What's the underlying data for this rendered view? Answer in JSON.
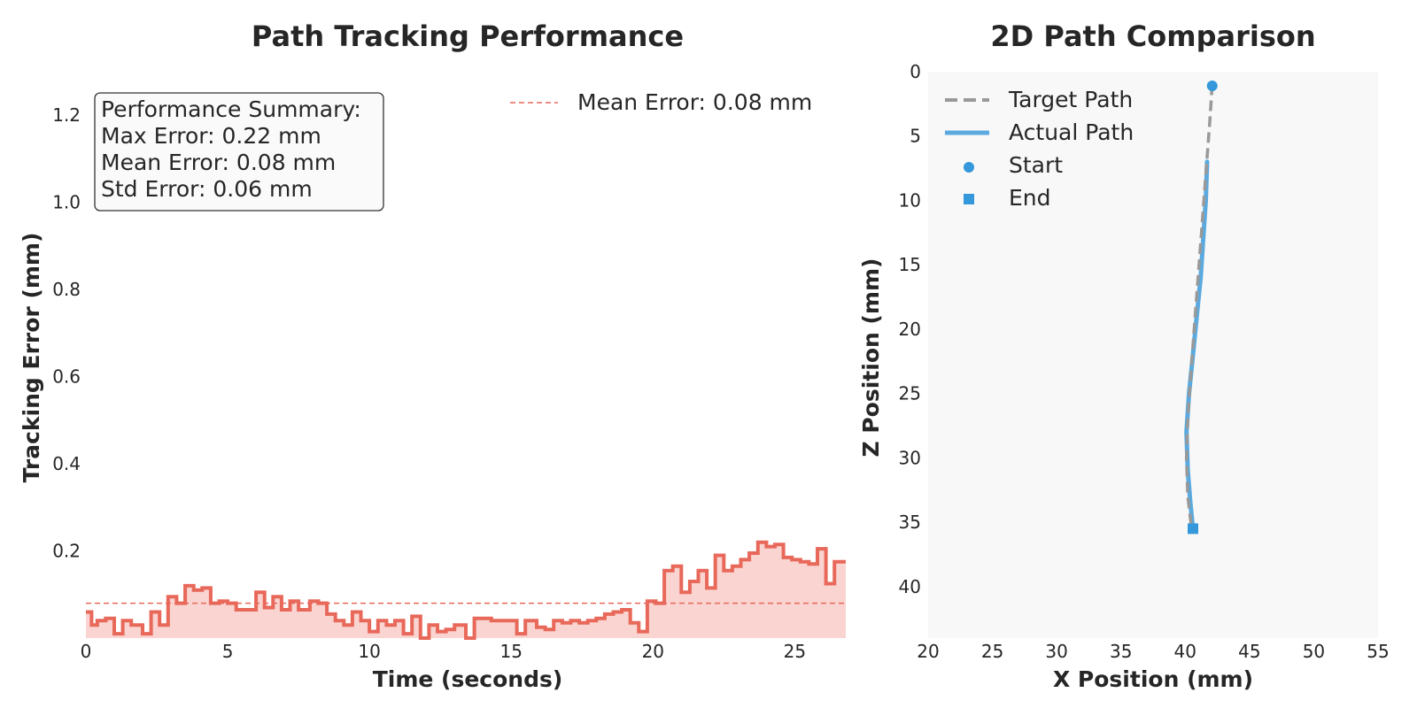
{
  "chart_data": [
    {
      "type": "line",
      "title": "Path Tracking Performance",
      "xlabel": "Time (seconds)",
      "ylabel": "Tracking Error (mm)",
      "xlim": [
        0,
        26.8
      ],
      "ylim": [
        0,
        1.3
      ],
      "xticks": [
        "0",
        "5",
        "10",
        "15",
        "20",
        "25"
      ],
      "yticks": [
        "0.2",
        "0.4",
        "0.6",
        "0.8",
        "1.0",
        "1.2"
      ],
      "grid": false,
      "legend_position": "top-right",
      "summary": {
        "heading": "Performance Summary:",
        "lines": [
          "Max Error: 0.22 mm",
          "Mean Error: 0.08 mm",
          "Std Error: 0.06 mm"
        ]
      },
      "mean_line": {
        "name": "Mean Error: 0.08 mm",
        "value": 0.08,
        "color": "#e8685a"
      },
      "series": [
        {
          "name": "Tracking Error",
          "color": "#e8685a",
          "fill_color": "#fad4d0",
          "style": "step",
          "x": [
            0.0,
            0.2,
            0.4,
            0.7,
            1.0,
            1.3,
            1.6,
            2.0,
            2.3,
            2.6,
            2.9,
            3.2,
            3.5,
            3.8,
            4.1,
            4.4,
            4.7,
            5.0,
            5.3,
            5.7,
            6.0,
            6.3,
            6.6,
            6.9,
            7.2,
            7.5,
            7.9,
            8.2,
            8.5,
            8.8,
            9.1,
            9.4,
            9.7,
            10.0,
            10.3,
            10.6,
            10.9,
            11.2,
            11.5,
            11.8,
            12.1,
            12.4,
            12.7,
            13.0,
            13.4,
            13.7,
            14.0,
            14.3,
            14.6,
            14.9,
            15.2,
            15.5,
            15.9,
            16.2,
            16.5,
            16.8,
            17.1,
            17.4,
            17.7,
            18.0,
            18.3,
            18.6,
            18.9,
            19.2,
            19.5,
            19.8,
            20.1,
            20.4,
            20.7,
            21.0,
            21.3,
            21.6,
            21.9,
            22.2,
            22.5,
            22.8,
            23.1,
            23.4,
            23.7,
            24.0,
            24.3,
            24.6,
            24.9,
            25.2,
            25.5,
            25.8,
            26.1,
            26.4,
            26.8
          ],
          "y": [
            0.06,
            0.03,
            0.04,
            0.045,
            0.01,
            0.04,
            0.03,
            0.01,
            0.06,
            0.03,
            0.095,
            0.08,
            0.12,
            0.11,
            0.115,
            0.08,
            0.085,
            0.08,
            0.065,
            0.065,
            0.105,
            0.07,
            0.095,
            0.065,
            0.085,
            0.065,
            0.085,
            0.08,
            0.055,
            0.04,
            0.03,
            0.06,
            0.04,
            0.015,
            0.04,
            0.03,
            0.04,
            0.01,
            0.05,
            0.0,
            0.03,
            0.015,
            0.02,
            0.03,
            0.0,
            0.045,
            0.045,
            0.04,
            0.04,
            0.04,
            0.01,
            0.04,
            0.025,
            0.02,
            0.04,
            0.035,
            0.04,
            0.035,
            0.04,
            0.045,
            0.055,
            0.06,
            0.065,
            0.035,
            0.015,
            0.085,
            0.08,
            0.155,
            0.165,
            0.105,
            0.13,
            0.155,
            0.115,
            0.19,
            0.155,
            0.165,
            0.18,
            0.195,
            0.22,
            0.21,
            0.215,
            0.185,
            0.18,
            0.175,
            0.17,
            0.205,
            0.125,
            0.175,
            0.175
          ]
        }
      ]
    },
    {
      "type": "line",
      "title": "2D Path Comparison",
      "xlabel": "X Position (mm)",
      "ylabel": "Z Position (mm)",
      "xlim": [
        20,
        55
      ],
      "ylim": [
        44,
        0
      ],
      "xticks": [
        "20",
        "25",
        "30",
        "35",
        "40",
        "45",
        "50",
        "55"
      ],
      "yticks": [
        "0",
        "5",
        "10",
        "15",
        "20",
        "25",
        "30",
        "35",
        "40"
      ],
      "y_inverted": true,
      "grid": false,
      "legend_position": "top-left",
      "background_color": "#f8f8f8",
      "series": [
        {
          "name": "Target Path",
          "color": "#999999",
          "style": "dashed",
          "x": [
            42.1,
            41.9,
            41.6,
            41.3,
            41.0,
            40.7,
            40.4,
            40.2,
            40.1,
            40.2,
            40.5
          ],
          "z": [
            1.0,
            4.0,
            8.0,
            12.0,
            16.0,
            20.0,
            24.0,
            27.0,
            30.0,
            33.0,
            35.5
          ]
        },
        {
          "name": "Actual Path",
          "color": "#5aaae0",
          "style": "solid",
          "x": [
            41.7,
            41.6,
            41.4,
            41.2,
            40.9,
            40.6,
            40.3,
            40.1,
            40.2,
            40.4,
            40.6
          ],
          "z": [
            7.0,
            10.0,
            13.0,
            16.0,
            19.0,
            22.0,
            25.0,
            28.0,
            31.0,
            33.5,
            35.5
          ]
        },
        {
          "name": "Start",
          "color": "#3498db",
          "marker": "circle",
          "x": [
            42.1
          ],
          "z": [
            1.1
          ]
        },
        {
          "name": "End",
          "color": "#3498db",
          "marker": "square",
          "x": [
            40.6
          ],
          "z": [
            35.5
          ]
        }
      ]
    }
  ]
}
